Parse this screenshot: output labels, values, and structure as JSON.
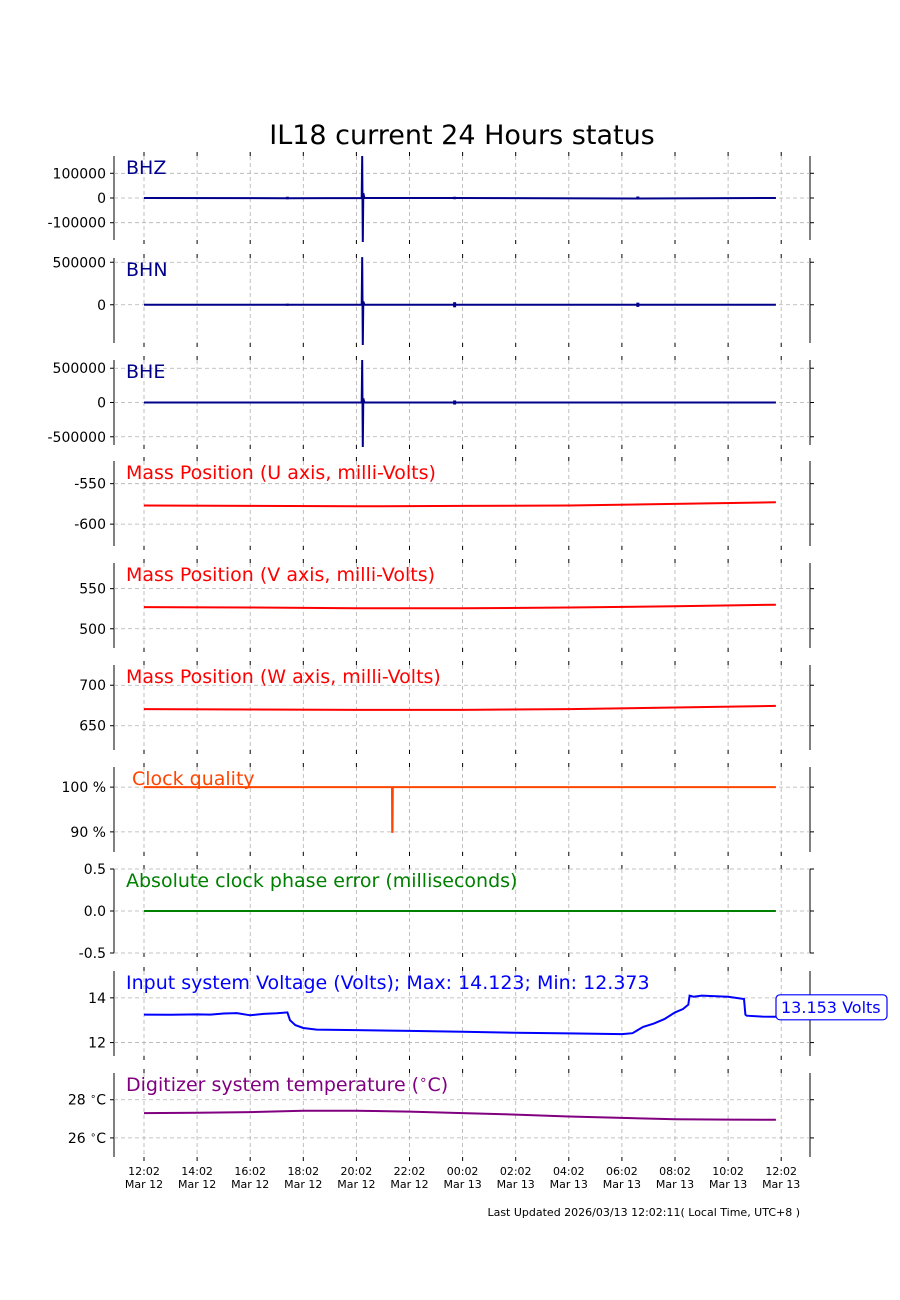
{
  "header": {
    "title": "IL18 current 24 Hours status",
    "last_updated": "Last Updated 2026/03/13 12:02:11( Local Time, UTC+8 )"
  },
  "time_axis": {
    "ticks": [
      {
        "time": "12:02",
        "date": "Mar 12"
      },
      {
        "time": "14:02",
        "date": "Mar 12"
      },
      {
        "time": "16:02",
        "date": "Mar 12"
      },
      {
        "time": "18:02",
        "date": "Mar 12"
      },
      {
        "time": "20:02",
        "date": "Mar 12"
      },
      {
        "time": "22:02",
        "date": "Mar 12"
      },
      {
        "time": "00:02",
        "date": "Mar 13"
      },
      {
        "time": "02:02",
        "date": "Mar 13"
      },
      {
        "time": "04:02",
        "date": "Mar 13"
      },
      {
        "time": "06:02",
        "date": "Mar 13"
      },
      {
        "time": "08:02",
        "date": "Mar 13"
      },
      {
        "time": "10:02",
        "date": "Mar 13"
      },
      {
        "time": "12:02",
        "date": "Mar 13"
      }
    ]
  },
  "chart_data": [
    {
      "type": "line",
      "label": "BHZ",
      "color": "#00008b",
      "ylim": [
        -170000,
        170000
      ],
      "yticks": [
        {
          "v": 100000,
          "t": "100000"
        },
        {
          "v": 0,
          "t": "0"
        },
        {
          "v": -100000,
          "t": "-100000"
        }
      ],
      "baseline": 0,
      "x": [
        0,
        5.4,
        8.2,
        8.22,
        8.24,
        8.26,
        8.3,
        11.7,
        18.6,
        23.8
      ],
      "y": [
        0,
        -1000,
        0,
        170000,
        -190000,
        20000,
        0,
        0,
        -2000,
        0
      ],
      "spikes": [
        {
          "x": 5.4,
          "a": 5000
        },
        {
          "x": 11.7,
          "a": 5000
        },
        {
          "x": 18.6,
          "a": 6000
        }
      ]
    },
    {
      "type": "line",
      "label": "BHN",
      "color": "#00008b",
      "ylim": [
        -450000,
        550000
      ],
      "yticks": [
        {
          "v": 500000,
          "t": "500000"
        },
        {
          "v": 0,
          "t": "0"
        }
      ],
      "baseline": 0,
      "x": [
        0,
        8.2,
        8.22,
        8.24,
        8.26,
        8.3,
        23.8
      ],
      "y": [
        0,
        0,
        560000,
        -480000,
        40000,
        0,
        0
      ],
      "spikes": [
        {
          "x": 5.4,
          "a": 12000
        },
        {
          "x": 11.7,
          "a": 30000
        },
        {
          "x": 18.6,
          "a": 25000
        }
      ]
    },
    {
      "type": "line",
      "label": "BHE",
      "color": "#00008b",
      "ylim": [
        -620000,
        620000
      ],
      "yticks": [
        {
          "v": 500000,
          "t": "500000"
        },
        {
          "v": 0,
          "t": "0"
        },
        {
          "v": -500000,
          "t": "-500000"
        }
      ],
      "baseline": 0,
      "x": [
        0,
        8.2,
        8.22,
        8.24,
        8.26,
        8.3,
        23.8
      ],
      "y": [
        0,
        0,
        620000,
        -660000,
        60000,
        0,
        0
      ],
      "spikes": [
        {
          "x": 1.7,
          "a": 8000
        },
        {
          "x": 11.7,
          "a": 30000
        }
      ]
    },
    {
      "type": "line",
      "label": "Mass Position (U axis, milli-Volts)",
      "color": "#ff0000",
      "ylim": [
        -627,
        -522
      ],
      "yticks": [
        {
          "v": -550,
          "t": "-550"
        },
        {
          "v": -600,
          "t": "-600"
        }
      ],
      "x": [
        0,
        4,
        8,
        12,
        16,
        20,
        23.8
      ],
      "y": [
        -577,
        -577.5,
        -578,
        -577.5,
        -577,
        -575,
        -573
      ]
    },
    {
      "type": "line",
      "label": "Mass Position (V axis, milli-Volts)",
      "color": "#ff0000",
      "ylim": [
        476,
        582
      ],
      "yticks": [
        {
          "v": 550,
          "t": "550"
        },
        {
          "v": 500,
          "t": "500"
        }
      ],
      "x": [
        0,
        4,
        8,
        12,
        16,
        20,
        23.8
      ],
      "y": [
        527,
        526.5,
        525.5,
        525.5,
        526.5,
        528,
        530
      ]
    },
    {
      "type": "line",
      "label": "Mass Position (W axis, milli-Volts)",
      "color": "#ff0000",
      "ylim": [
        620,
        725
      ],
      "yticks": [
        {
          "v": 700,
          "t": "700"
        },
        {
          "v": 650,
          "t": "650"
        }
      ],
      "x": [
        0,
        4,
        8,
        12,
        16,
        20,
        23.8
      ],
      "y": [
        670.5,
        670,
        669.5,
        669.5,
        670.5,
        672.5,
        674.5
      ]
    },
    {
      "type": "line",
      "label": "Clock quality",
      "color": "#ff4500",
      "ylim": [
        85.5,
        104.5
      ],
      "yticks": [
        {
          "v": 100,
          "t": "100 %"
        },
        {
          "v": 90,
          "t": "90 %"
        }
      ],
      "x": [
        0,
        9.34,
        9.35,
        9.36,
        9.37,
        23.8
      ],
      "y": [
        100,
        100,
        90,
        90,
        100,
        100
      ]
    },
    {
      "type": "line",
      "label": "Absolute clock phase error (milliseconds)",
      "color": "#008000",
      "ylim": [
        -0.5,
        0.5
      ],
      "yticks": [
        {
          "v": 0.5,
          "t": "0.5"
        },
        {
          "v": 0.0,
          "t": "0.0"
        },
        {
          "v": -0.5,
          "t": "-0.5"
        }
      ],
      "x": [
        0,
        23.8
      ],
      "y": [
        0,
        0
      ]
    },
    {
      "type": "line",
      "label": "Input system Voltage (Volts);    Max: 14.123; Min: 12.373",
      "color": "#0000ff",
      "ylim": [
        11.4,
        15.2
      ],
      "yticks": [
        {
          "v": 14,
          "t": "14"
        },
        {
          "v": 12,
          "t": "12"
        }
      ],
      "x": [
        0,
        1,
        2,
        2.5,
        3,
        3.5,
        4,
        4.5,
        5,
        5.4,
        5.5,
        5.7,
        6,
        6.5,
        8,
        10,
        12,
        14,
        16,
        18,
        18.4,
        18.8,
        19.2,
        19.6,
        20,
        20.3,
        20.5,
        20.55,
        20.7,
        21,
        22,
        22.6,
        22.65,
        22.7,
        23.3,
        23.8
      ],
      "y": [
        13.25,
        13.24,
        13.26,
        13.25,
        13.3,
        13.32,
        13.22,
        13.28,
        13.31,
        13.35,
        13.0,
        12.78,
        12.65,
        12.58,
        12.56,
        12.52,
        12.48,
        12.44,
        12.41,
        12.38,
        12.42,
        12.7,
        12.85,
        13.05,
        13.35,
        13.5,
        13.7,
        14.1,
        14.05,
        14.1,
        14.05,
        13.95,
        13.25,
        13.2,
        13.16,
        13.153
      ]
    },
    {
      "type": "line",
      "label": "Digitizer system temperature ($^\\circ$C)",
      "color": "#800080",
      "ylim": [
        25.0,
        29.4
      ],
      "yticks": [
        {
          "v": 28,
          "t": "28 $^\\circ$C"
        },
        {
          "v": 26,
          "t": "26 $^\\circ$C"
        }
      ],
      "x": [
        0,
        2,
        4,
        6,
        8,
        10,
        12,
        14,
        16,
        18,
        20,
        22,
        23.8
      ],
      "y": [
        27.3,
        27.32,
        27.35,
        27.42,
        27.42,
        27.38,
        27.3,
        27.22,
        27.12,
        27.05,
        26.98,
        26.96,
        26.95
      ]
    }
  ],
  "voltage_callout": "13.153 Volts",
  "colors": {
    "grid": "#b0b0b0",
    "axis": "#000000",
    "text": "#000000"
  }
}
